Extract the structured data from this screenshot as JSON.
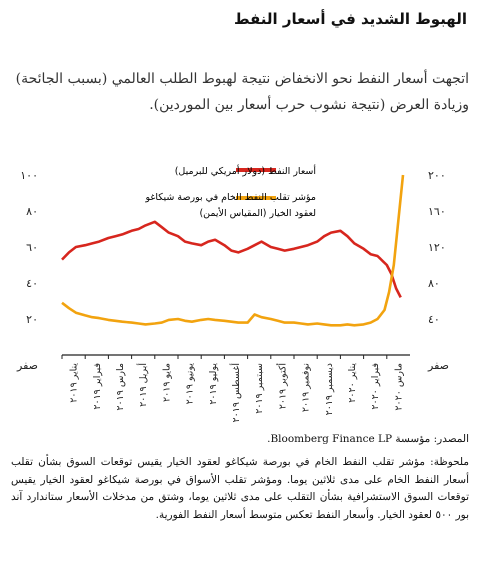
{
  "header": {
    "title": "الهبوط الشديد في أسعار النفط",
    "lede": "اتجهت أسعار النفط نحو الانخفاض نتيجة لهبوط الطلب العالمي (بسبب الجائحة) وزيادة العرض (نتيجة نشوب حرب أسعار بين الموردين)."
  },
  "colors": {
    "oil_price": "#d7261e",
    "ovx": "#f2a30f",
    "axis": "#222222"
  },
  "chart_data": {
    "type": "line",
    "title": "",
    "zero_label": "صفر",
    "left_axis": {
      "min": 0,
      "max": 100,
      "ticks": [
        20,
        40,
        60,
        80,
        100
      ],
      "tick_labels": [
        "٢٠",
        "٤٠",
        "٦٠",
        "٨٠",
        "١٠٠"
      ]
    },
    "right_axis": {
      "min": 0,
      "max": 200,
      "ticks": [
        40,
        80,
        120,
        160,
        200
      ],
      "tick_labels": [
        "٤٠",
        "٨٠",
        "١٢٠",
        "١٦٠",
        "٢٠٠"
      ]
    },
    "x_labels": [
      "يناير ٢٠١٩",
      "فبراير ٢٠١٩",
      "مارس ٢٠١٩",
      "أبريل ٢٠١٩",
      "مايو ٢٠١٩",
      "يونيو ٢٠١٩",
      "يوليو ٢٠١٩",
      "أغسطس ٢٠١٩",
      "سبتمبر ٢٠١٩",
      "أكتوبر ٢٠١٩",
      "نوفمبر ٢٠١٩",
      "ديسمبر ٢٠١٩",
      "يناير ٢٠٢٠",
      "فبراير ٢٠٢٠",
      "مارس ٢٠٢٠"
    ],
    "legend_position": "top-center",
    "grid": false,
    "series": [
      {
        "name": "أسعار النفط (دولار أمريكي للبرميل)",
        "axis": "left",
        "x": [
          0.0,
          0.3,
          0.6,
          1.0,
          1.3,
          1.6,
          2.0,
          2.3,
          2.6,
          3.0,
          3.3,
          3.6,
          4.0,
          4.3,
          4.6,
          5.0,
          5.3,
          5.6,
          6.0,
          6.3,
          6.6,
          7.0,
          7.3,
          7.6,
          8.0,
          8.3,
          8.6,
          9.0,
          9.3,
          9.6,
          10.0,
          10.3,
          10.6,
          11.0,
          11.3,
          11.6,
          12.0,
          12.3,
          12.6,
          13.0,
          13.3,
          13.6,
          14.0,
          14.2,
          14.4,
          14.6
        ],
        "values": [
          53,
          57,
          60,
          61,
          62,
          63,
          65,
          66,
          67,
          69,
          70,
          72,
          74,
          71,
          68,
          66,
          63,
          62,
          61,
          63,
          64,
          61,
          58,
          57,
          59,
          61,
          63,
          60,
          59,
          58,
          59,
          60,
          61,
          63,
          66,
          68,
          69,
          66,
          62,
          59,
          56,
          55,
          50,
          45,
          37,
          32
        ]
      },
      {
        "name": "مؤشر تقلب النفط الخام في بورصة شيكاغو لعقود الخيار (المقياس الأيمن)",
        "axis": "right",
        "x": [
          0.0,
          0.3,
          0.6,
          1.0,
          1.3,
          1.6,
          2.0,
          2.3,
          2.6,
          3.0,
          3.3,
          3.6,
          4.0,
          4.3,
          4.6,
          5.0,
          5.3,
          5.6,
          6.0,
          6.3,
          6.6,
          7.0,
          7.3,
          7.6,
          8.0,
          8.3,
          8.6,
          9.0,
          9.3,
          9.6,
          10.0,
          10.3,
          10.6,
          11.0,
          11.3,
          11.6,
          12.0,
          12.3,
          12.6,
          13.0,
          13.3,
          13.6,
          13.9,
          14.1,
          14.3,
          14.5,
          14.7
        ],
        "values": [
          58,
          52,
          47,
          44,
          42,
          41,
          39,
          38,
          37,
          36,
          35,
          34,
          35,
          36,
          39,
          40,
          38,
          37,
          39,
          40,
          39,
          38,
          37,
          36,
          36,
          45,
          42,
          40,
          38,
          36,
          36,
          35,
          34,
          35,
          34,
          33,
          33,
          34,
          33,
          34,
          36,
          40,
          50,
          70,
          100,
          150,
          200
        ]
      }
    ]
  },
  "footer": {
    "source": "المصدر: مؤسسة Bloomberg Finance LP.",
    "note": "ملحوظة: مؤشر تقلب النفط الخام في بورصة شيكاغو لعقود الخيار يقيس توقعات السوق بشأن تقلب أسعار النفط الخام على مدى ثلاثين يوما. ومؤشر تقلب الأسواق في بورصة شيكاغو لعقود الخيار يقيس توقعات السوق الاستشرافية بشأن التقلب على مدى ثلاثين يوما، وشتق من مدخلات الأسعار ستاندارد آند بور ٥٠٠ لعقود الخيار. وأسعار النفط تعكس متوسط أسعار النفط الفورية."
  }
}
